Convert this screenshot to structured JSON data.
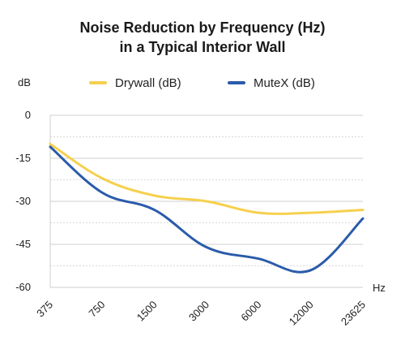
{
  "title_line1": "Noise Reduction by Frequency (Hz)",
  "title_line2": "in a Typical Interior Wall",
  "chart_data": {
    "type": "line",
    "title": "Noise Reduction by Frequency (Hz) in a Typical Interior Wall",
    "ylabel": "dB",
    "xlabel": "Hz",
    "categories": [
      "375",
      "750",
      "1500",
      "3000",
      "6000",
      "12000",
      "23625"
    ],
    "ylim": [
      -60,
      0
    ],
    "yticks": [
      0,
      -15,
      -30,
      -45,
      -60
    ],
    "grid": true,
    "legend_position": "top",
    "series": [
      {
        "name": "Drywall (dB)",
        "color": "#F6D04D",
        "values": [
          -10,
          -22,
          -28,
          -30,
          -34,
          -34,
          -33
        ]
      },
      {
        "name": "MuteX (dB)",
        "color": "#2B5BAA",
        "values": [
          -11,
          -27,
          -33,
          -46,
          -50,
          -54,
          -36
        ]
      }
    ]
  }
}
